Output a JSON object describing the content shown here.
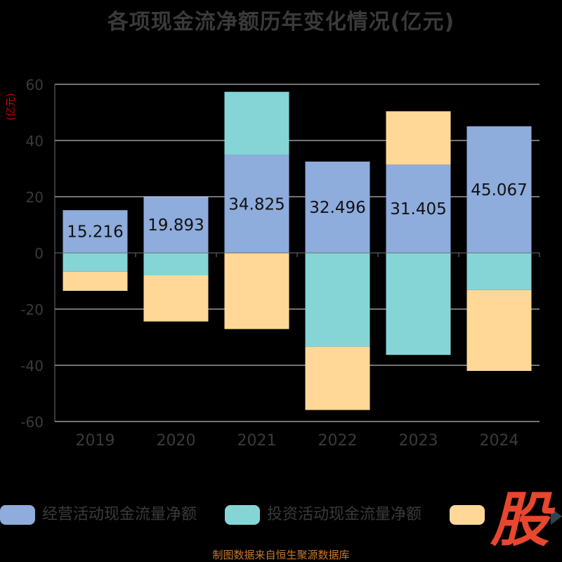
{
  "title": "各项现金流净额历年变化情况(亿元)",
  "unit_label": "(亿元)",
  "source": "制图数据来自恒生聚源数据库",
  "logo_text": "股",
  "colors": {
    "operating": "#8EACDC",
    "investing": "#86D5D6",
    "financing": "#FFD898",
    "grid": "#e6e6e6",
    "axis": "#6e7079",
    "tick_label": "#3a3a3a",
    "data_label": "#111111",
    "unit": "#d40000",
    "source": "#c8782c"
  },
  "legend": [
    {
      "name": "经营活动现金流量净额",
      "color": "#8EACDC"
    },
    {
      "name": "投资活动现金流量净额",
      "color": "#86D5D6"
    },
    {
      "name": "",
      "color": "#FFD898"
    }
  ],
  "chart_data": {
    "type": "bar",
    "stacked": true,
    "categories": [
      "2019",
      "2020",
      "2021",
      "2022",
      "2023",
      "2024"
    ],
    "ylim": [
      -60,
      60
    ],
    "yticks": [
      -60,
      -40,
      -20,
      0,
      20,
      40,
      60
    ],
    "grid": true,
    "legend_position": "bottom",
    "series": [
      {
        "name": "经营活动现金流量净额",
        "color": "#8EACDC",
        "values": [
          15.216,
          19.893,
          34.825,
          32.496,
          31.405,
          45.067
        ],
        "show_labels": true
      },
      {
        "name": "投资活动现金流量净额",
        "color": "#86D5D6",
        "values": [
          -6.7,
          -8.0,
          22.5,
          -33.4,
          -36.3,
          -13.2
        ],
        "show_labels": false
      },
      {
        "color": "#FFD898",
        "values": [
          -6.8,
          -16.4,
          -27.1,
          -22.5,
          19.0,
          -28.8
        ],
        "show_labels": false
      }
    ]
  }
}
